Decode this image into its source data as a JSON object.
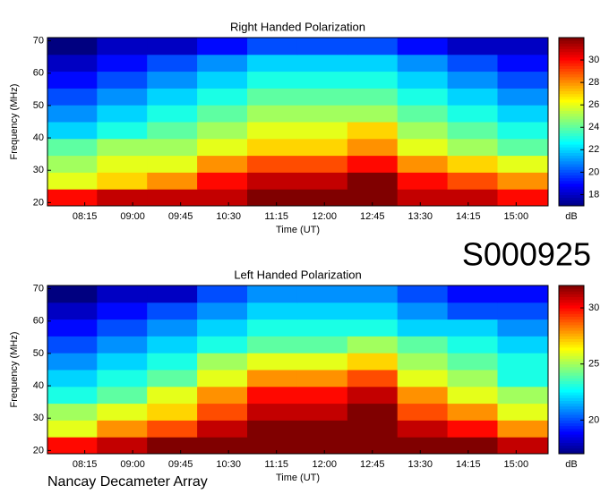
{
  "figure_code": "S000925",
  "footer": "Nancay Decameter Array",
  "chart_data": [
    {
      "type": "heatmap",
      "title": "Right Handed Polarization",
      "x_label": "Time (UT)",
      "y_label": "Frequency (MHz)",
      "colorbar_label": "dB",
      "colormap": "jet",
      "xlim": [
        "07:40",
        "15:30"
      ],
      "xticks": [
        "08:15",
        "09:00",
        "09:45",
        "10:30",
        "11:15",
        "12:00",
        "12:45",
        "13:30",
        "14:15",
        "15:00"
      ],
      "ylim": [
        19,
        71
      ],
      "yticks": [
        20,
        30,
        40,
        50,
        60,
        70
      ],
      "clim": [
        17,
        32
      ],
      "cticks": [
        18,
        20,
        22,
        24,
        26,
        28,
        30
      ],
      "x": [
        "08:03",
        "08:50",
        "09:37",
        "10:24",
        "11:11",
        "11:58",
        "12:45",
        "13:32",
        "14:19",
        "15:06"
      ],
      "y": [
        21.6,
        26.8,
        32,
        37.2,
        42.4,
        47.6,
        52.8,
        58,
        63.2,
        68.4
      ],
      "values": [
        [
          30,
          31,
          31,
          31,
          32,
          32,
          32,
          31,
          31,
          30
        ],
        [
          26,
          27,
          28,
          30,
          31,
          31,
          32,
          30,
          29,
          28
        ],
        [
          25,
          26,
          26,
          28,
          29,
          29,
          30,
          28,
          27,
          26
        ],
        [
          24,
          25,
          25,
          26,
          27,
          27,
          28,
          26,
          25,
          24
        ],
        [
          22,
          23,
          24,
          25,
          26,
          26,
          27,
          25,
          24,
          23
        ],
        [
          21,
          22,
          23,
          24,
          25,
          25,
          25,
          24,
          23,
          22
        ],
        [
          20,
          21,
          22,
          23,
          24,
          24,
          24,
          23,
          22,
          21
        ],
        [
          19,
          20,
          21,
          22,
          23,
          23,
          23,
          22,
          21,
          20
        ],
        [
          18,
          19,
          20,
          21,
          22,
          22,
          22,
          21,
          20,
          19
        ],
        [
          17,
          18,
          18,
          19,
          20,
          20,
          20,
          19,
          18,
          18
        ]
      ]
    },
    {
      "type": "heatmap",
      "title": "Left Handed Polarization",
      "x_label": "Time (UT)",
      "y_label": "Frequency (MHz)",
      "colorbar_label": "dB",
      "colormap": "jet",
      "xlim": [
        "07:40",
        "15:30"
      ],
      "xticks": [
        "08:15",
        "09:00",
        "09:45",
        "10:30",
        "11:15",
        "12:00",
        "12:45",
        "13:30",
        "14:15",
        "15:00"
      ],
      "ylim": [
        19,
        71
      ],
      "yticks": [
        20,
        30,
        40,
        50,
        60,
        70
      ],
      "clim": [
        17,
        32
      ],
      "cticks": [
        20,
        25,
        30
      ],
      "x": [
        "08:03",
        "08:50",
        "09:37",
        "10:24",
        "11:11",
        "11:58",
        "12:45",
        "13:32",
        "14:19",
        "15:06"
      ],
      "y": [
        21.6,
        26.8,
        32,
        37.2,
        42.4,
        47.6,
        52.8,
        58,
        63.2,
        68.4
      ],
      "values": [
        [
          30,
          31,
          32,
          32,
          33,
          33,
          33,
          32,
          32,
          31
        ],
        [
          26,
          28,
          29,
          31,
          32,
          32,
          32,
          31,
          30,
          28
        ],
        [
          25,
          26,
          27,
          29,
          31,
          31,
          32,
          29,
          28,
          26
        ],
        [
          23,
          24,
          26,
          28,
          30,
          30,
          31,
          28,
          26,
          25
        ],
        [
          22,
          23,
          24,
          26,
          28,
          28,
          29,
          26,
          25,
          23
        ],
        [
          21,
          22,
          23,
          25,
          26,
          26,
          27,
          25,
          24,
          23
        ],
        [
          20,
          21,
          22,
          23,
          24,
          24,
          25,
          24,
          23,
          22
        ],
        [
          19,
          20,
          21,
          22,
          23,
          23,
          23,
          22,
          22,
          21
        ],
        [
          18,
          19,
          20,
          21,
          22,
          22,
          22,
          21,
          20,
          20
        ],
        [
          17,
          18,
          18,
          20,
          21,
          21,
          21,
          20,
          19,
          19
        ]
      ]
    }
  ]
}
